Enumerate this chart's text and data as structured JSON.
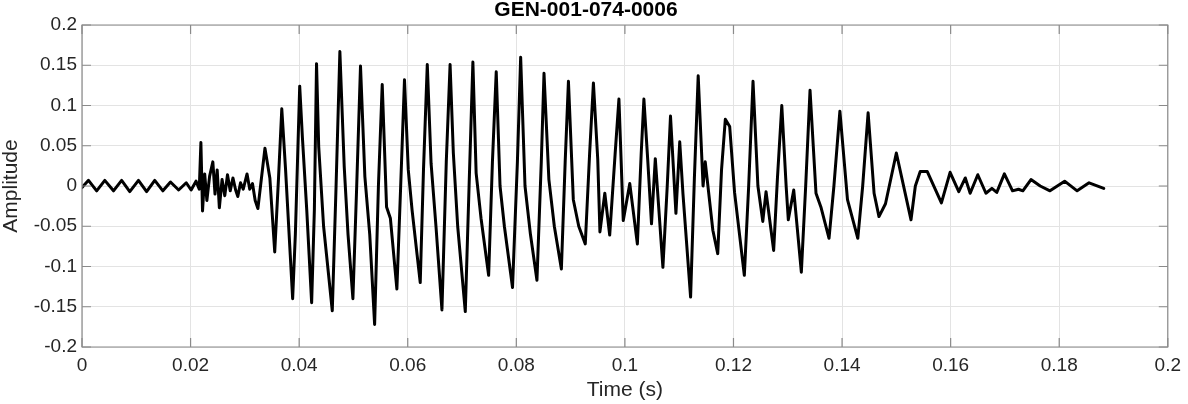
{
  "chart_data": {
    "type": "line",
    "title": "GEN-001-074-0006",
    "xlabel": "Time (s)",
    "ylabel": "Amplitude",
    "color": "#000000",
    "xlim": [
      0,
      0.2
    ],
    "ylim": [
      -0.2,
      0.2
    ],
    "xticks": [
      0,
      0.02,
      0.04,
      0.06,
      0.08,
      0.1,
      0.12,
      0.14,
      0.16,
      0.18,
      0.2
    ],
    "yticks": [
      -0.2,
      -0.15,
      -0.1,
      -0.05,
      0,
      0.05,
      0.1,
      0.15,
      0.2
    ],
    "grid": true,
    "x": [
      0,
      0.0012,
      0.0027,
      0.0042,
      0.0058,
      0.0073,
      0.0088,
      0.0104,
      0.0119,
      0.0134,
      0.0149,
      0.0163,
      0.0178,
      0.0192,
      0.0201,
      0.021,
      0.0216,
      0.0219,
      0.0222,
      0.0226,
      0.023,
      0.0235,
      0.0241,
      0.0245,
      0.0249,
      0.0253,
      0.0258,
      0.0263,
      0.0268,
      0.0273,
      0.0278,
      0.0283,
      0.0287,
      0.0292,
      0.0297,
      0.0304,
      0.0309,
      0.0314,
      0.0319,
      0.0324,
      0.0337,
      0.0346,
      0.0355,
      0.0362,
      0.0368,
      0.0375,
      0.0388,
      0.0393,
      0.0401,
      0.0406,
      0.0414,
      0.0423,
      0.0428,
      0.0432,
      0.0436,
      0.0445,
      0.0461,
      0.0468,
      0.0475,
      0.0483,
      0.049,
      0.0499,
      0.0506,
      0.0513,
      0.0521,
      0.053,
      0.0539,
      0.0546,
      0.0553,
      0.0561,
      0.0568,
      0.058,
      0.0587,
      0.0594,
      0.0601,
      0.0608,
      0.0623,
      0.0629,
      0.0636,
      0.0643,
      0.0652,
      0.0663,
      0.0671,
      0.0678,
      0.0684,
      0.0692,
      0.0706,
      0.0713,
      0.072,
      0.0726,
      0.0735,
      0.0749,
      0.0756,
      0.0763,
      0.077,
      0.0778,
      0.0793,
      0.0802,
      0.0808,
      0.0816,
      0.0826,
      0.0838,
      0.0846,
      0.0851,
      0.086,
      0.087,
      0.0883,
      0.089,
      0.0896,
      0.0905,
      0.0915,
      0.0927,
      0.0935,
      0.0942,
      0.095,
      0.0954,
      0.0963,
      0.0972,
      0.0982,
      0.0989,
      0.0997,
      0.1009,
      0.1023,
      0.103,
      0.1035,
      0.1042,
      0.1049,
      0.1056,
      0.107,
      0.1078,
      0.1084,
      0.1094,
      0.1101,
      0.1107,
      0.1121,
      0.1128,
      0.1135,
      0.1144,
      0.1148,
      0.1162,
      0.1171,
      0.1178,
      0.1185,
      0.1193,
      0.1202,
      0.122,
      0.1228,
      0.1236,
      0.1245,
      0.1254,
      0.126,
      0.1274,
      0.1281,
      0.1289,
      0.1297,
      0.1301,
      0.1311,
      0.1325,
      0.1333,
      0.1341,
      0.1352,
      0.1361,
      0.1376,
      0.1385,
      0.1396,
      0.141,
      0.1429,
      0.1438,
      0.1448,
      0.1459,
      0.1468,
      0.148,
      0.15,
      0.1527,
      0.1535,
      0.1544,
      0.1557,
      0.1583,
      0.1599,
      0.1615,
      0.1627,
      0.1636,
      0.165,
      0.1665,
      0.1676,
      0.1685,
      0.1699,
      0.1714,
      0.1725,
      0.1733,
      0.1748,
      0.1765,
      0.1783,
      0.181,
      0.1833,
      0.1855,
      0.1882
    ],
    "values": [
      -0.002,
      0.007,
      -0.006,
      0.007,
      -0.006,
      0.007,
      -0.007,
      0.007,
      -0.007,
      0.007,
      -0.006,
      0.005,
      -0.005,
      0.004,
      -0.005,
      0.006,
      -0.004,
      0.054,
      -0.031,
      0.015,
      -0.018,
      0.012,
      0.03,
      -0.01,
      0.02,
      -0.027,
      0.008,
      -0.012,
      0.014,
      -0.006,
      0.01,
      -0.005,
      -0.013,
      0.004,
      -0.004,
      0.015,
      -0.004,
      0.003,
      -0.018,
      -0.028,
      0.047,
      0.01,
      -0.082,
      0.01,
      0.096,
      0.02,
      -0.14,
      -0.06,
      0.124,
      0.06,
      -0.03,
      -0.145,
      -0.03,
      0.152,
      0.049,
      -0.05,
      -0.155,
      0,
      0.167,
      0.024,
      -0.06,
      -0.14,
      0,
      0.149,
      0.012,
      -0.06,
      -0.172,
      0,
      0.126,
      -0.026,
      -0.04,
      -0.128,
      0,
      0.132,
      0.02,
      -0.03,
      -0.12,
      0.02,
      0.151,
      0.028,
      -0.05,
      -0.154,
      0.03,
      0.151,
      0.041,
      -0.05,
      -0.156,
      0,
      0.154,
      0.016,
      -0.04,
      -0.111,
      0.03,
      0.142,
      0,
      -0.05,
      -0.126,
      0.03,
      0.16,
      0,
      -0.06,
      -0.117,
      0.03,
      0.14,
      0.008,
      -0.05,
      -0.103,
      0.03,
      0.13,
      -0.017,
      -0.05,
      -0.072,
      0.04,
      0.128,
      0.033,
      -0.057,
      -0.009,
      -0.061,
      0.04,
      0.108,
      -0.043,
      0.003,
      -0.072,
      0.04,
      0.108,
      0.033,
      -0.047,
      0.034,
      -0.101,
      0,
      0.087,
      -0.034,
      0.055,
      -0.01,
      -0.138,
      0.01,
      0.137,
      0,
      0.03,
      -0.055,
      -0.084,
      0.02,
      0.083,
      0.074,
      -0.008,
      -0.111,
      0,
      0.13,
      0,
      -0.044,
      -0.007,
      -0.08,
      0.01,
      0.1,
      0,
      -0.042,
      -0.005,
      -0.107,
      0,
      0.119,
      -0.009,
      -0.026,
      -0.065,
      0,
      0.093,
      -0.017,
      -0.065,
      0,
      0.091,
      -0.009,
      -0.038,
      -0.022,
      0.041,
      -0.042,
      0,
      0.018,
      0.018,
      -0.021,
      0.017,
      -0.007,
      0.01,
      -0.009,
      0.014,
      -0.009,
      -0.003,
      -0.008,
      0.015,
      -0.006,
      -0.004,
      -0.006,
      0.008,
      0,
      -0.006,
      0.006,
      -0.006,
      0.004,
      -0.003
    ]
  }
}
